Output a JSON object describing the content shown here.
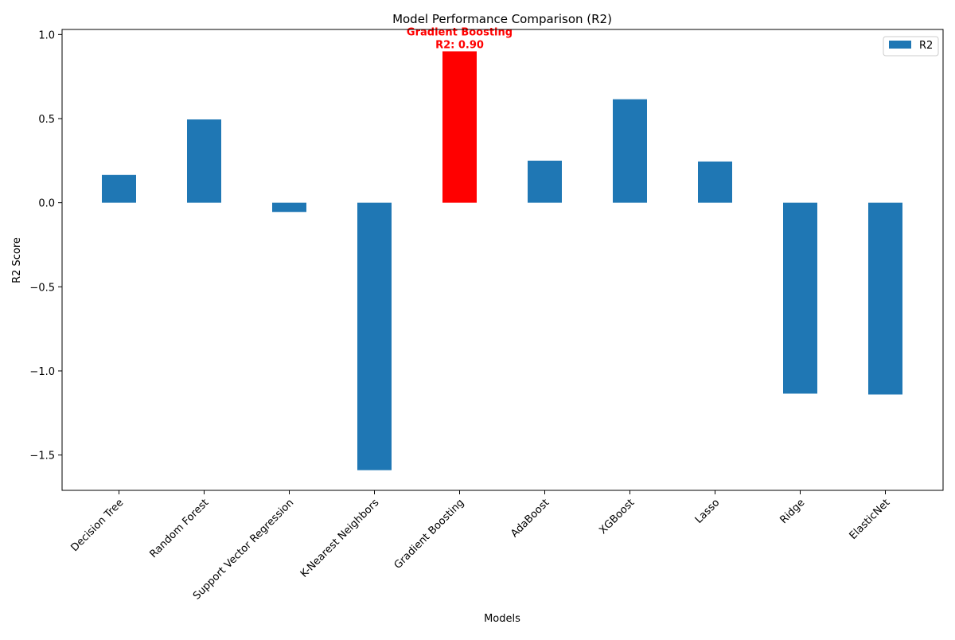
{
  "chart_data": {
    "type": "bar",
    "title": "Model Performance Comparison (R2)",
    "xlabel": "Models",
    "ylabel": "R2 Score",
    "categories": [
      "Decision Tree",
      "Random Forest",
      "Support Vector Regression",
      "K-Nearest Neighbors",
      "Gradient Boosting",
      "AdaBoost",
      "XGBoost",
      "Lasso",
      "Ridge",
      "ElasticNet"
    ],
    "series": [
      {
        "name": "R2",
        "values": [
          0.165,
          0.495,
          -0.055,
          -1.59,
          0.9,
          0.25,
          0.615,
          0.245,
          -1.135,
          -1.14
        ]
      }
    ],
    "ylim": [
      -1.71,
      1.03
    ],
    "yticks": [
      -1.5,
      -1.0,
      -0.5,
      0.0,
      0.5,
      1.0
    ],
    "ytick_labels": [
      "−1.5",
      "−1.0",
      "−0.5",
      "0.0",
      "0.5",
      "1.0"
    ],
    "grid": false,
    "legend_placement": "top-right",
    "colors": {
      "bar": "#1f77b4",
      "highlight": "#ff0000"
    },
    "highlight_index": 4,
    "annotation": {
      "line1": "Gradient Boosting",
      "line2": "R2: 0.90",
      "color": "#ff0000"
    }
  }
}
